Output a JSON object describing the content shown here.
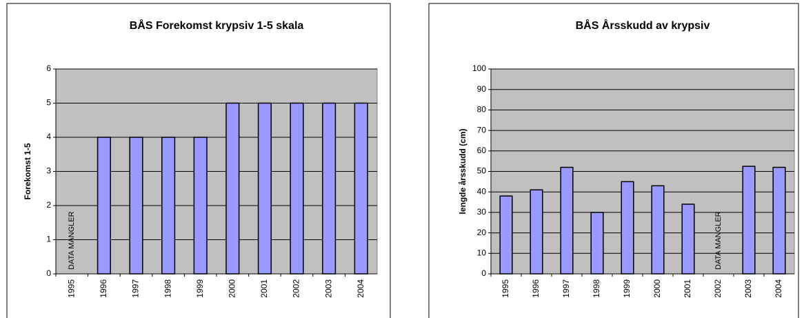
{
  "chart_data": [
    {
      "type": "bar",
      "title": "BÅS Forekomst krypsiv 1-5 skala",
      "y_label": "Forekomst 1-5",
      "categories": [
        "1995",
        "1996",
        "1997",
        "1998",
        "1999",
        "2000",
        "2001",
        "2002",
        "2003",
        "2004"
      ],
      "values": [
        null,
        4,
        4,
        4,
        4,
        5,
        5,
        5,
        5,
        5
      ],
      "color": "#9999ff",
      "ylim": [
        0,
        6
      ],
      "yticks": [
        0,
        1,
        2,
        3,
        4,
        5,
        6
      ],
      "grid": true,
      "annotations": [
        {
          "text": "DATA MANGLER",
          "category": "1995"
        }
      ]
    },
    {
      "type": "bar",
      "title": "BÅS Årsskudd av krypsiv",
      "y_label": "lengde årsskudd (cm)",
      "categories": [
        "1995",
        "1996",
        "1997",
        "1998",
        "1999",
        "2000",
        "2001",
        "2002",
        "2003",
        "2004"
      ],
      "values": [
        38,
        41,
        52,
        30,
        45,
        43,
        34,
        null,
        52.5,
        52
      ],
      "color": "#9999ff",
      "ylim": [
        0,
        100
      ],
      "yticks": [
        0,
        10,
        20,
        30,
        40,
        50,
        60,
        70,
        80,
        90,
        100
      ],
      "grid": true,
      "annotations": [
        {
          "text": "DATA MANGLER",
          "category": "2002"
        }
      ]
    }
  ]
}
